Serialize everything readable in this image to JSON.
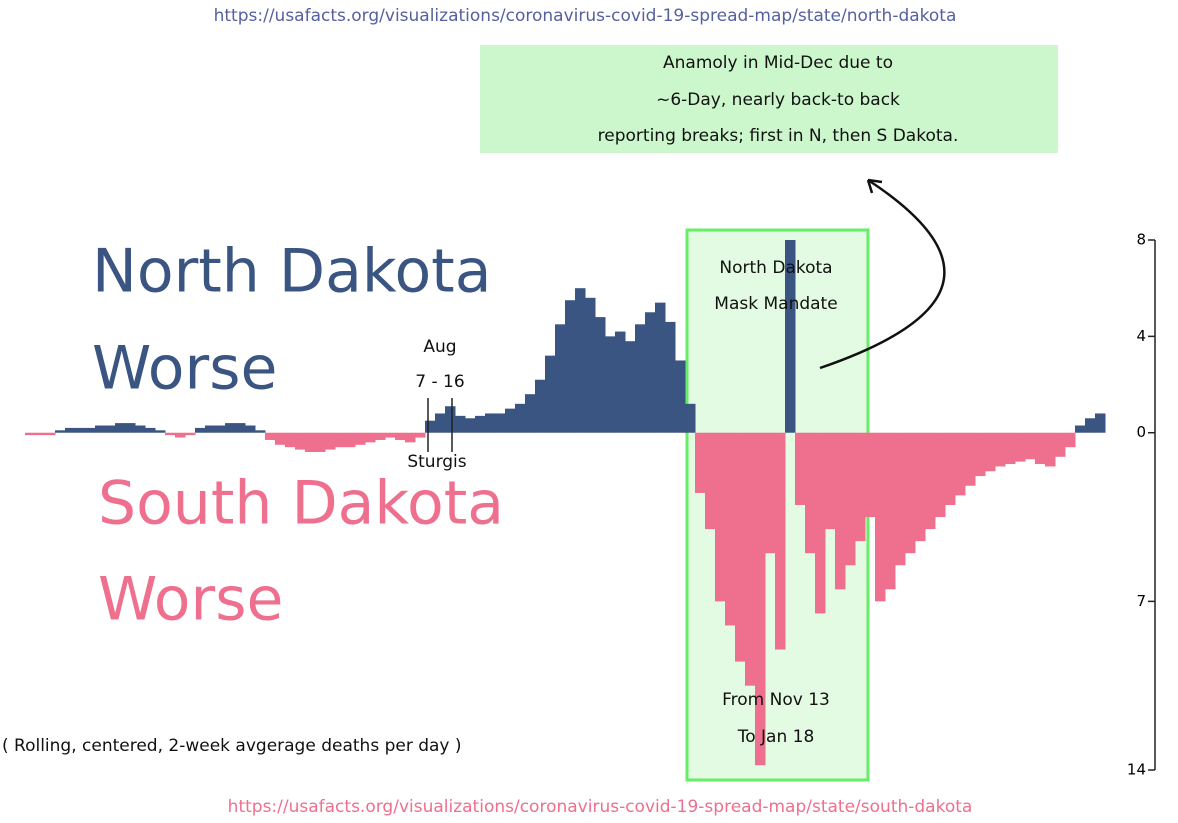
{
  "chart_data": {
    "type": "diverging-bar",
    "source_top": "https://usafacts.org/visualizations/coronavirus-covid-19-spread-map/state/north-dakota",
    "source_bottom": "https://usafacts.org/visualizations/coronavirus-covid-19-spread-map/state/south-dakota",
    "note_lines": [
      "Anamoly in Mid-Dec due to",
      "~6-Day, nearly back-to back",
      "reporting breaks; first in N, then S Dakota."
    ],
    "positive_label": [
      "North Dakota",
      "Worse"
    ],
    "negative_label": [
      "South Dakota",
      "Worse"
    ],
    "event_label": [
      "Aug",
      "7 - 16"
    ],
    "event_name": "Sturgis",
    "mandate_label": [
      "North Dakota",
      "Mask Mandate"
    ],
    "period_label": [
      "From Nov 13",
      "To Jan 18"
    ],
    "footnote": "( Rolling, centered, 2-week avgerage deaths per day )",
    "positive_color": "#3b5583",
    "negative_color": "#ee6f8e",
    "ylim": [
      -14,
      8
    ],
    "yticks": [
      8,
      4,
      0,
      {
        "value": -7,
        "label": "7"
      },
      {
        "value": -14,
        "label": "14"
      }
    ],
    "values": [
      -0.1,
      -0.1,
      -0.1,
      0.1,
      0.2,
      0.2,
      0.2,
      0.3,
      0.3,
      0.4,
      0.4,
      0.3,
      0.2,
      0.1,
      -0.1,
      -0.2,
      -0.1,
      0.2,
      0.3,
      0.3,
      0.4,
      0.4,
      0.3,
      0.1,
      -0.3,
      -0.5,
      -0.6,
      -0.7,
      -0.8,
      -0.8,
      -0.7,
      -0.6,
      -0.6,
      -0.5,
      -0.4,
      -0.3,
      -0.2,
      -0.3,
      -0.4,
      -0.2,
      0.5,
      0.8,
      1.1,
      0.7,
      0.6,
      0.7,
      0.8,
      0.8,
      1.0,
      1.2,
      1.6,
      2.2,
      3.2,
      4.5,
      5.5,
      6.0,
      5.6,
      4.8,
      4.0,
      4.2,
      3.8,
      4.5,
      5.0,
      5.4,
      4.6,
      3.0,
      1.2,
      -2.5,
      -4.0,
      -7.0,
      -8.0,
      -9.5,
      -10.5,
      -13.8,
      -5.0,
      -9.0,
      8.0,
      -3.0,
      -5.0,
      -7.5,
      -4.0,
      -6.5,
      -5.5,
      -4.5,
      -3.5,
      -7.0,
      -6.5,
      -5.5,
      -5.0,
      -4.5,
      -4.0,
      -3.5,
      -3.0,
      -2.6,
      -2.2,
      -1.8,
      -1.6,
      -1.4,
      -1.3,
      -1.2,
      -1.1,
      -1.3,
      -1.4,
      -1.0,
      -0.6,
      0.3,
      0.6,
      0.8
    ]
  }
}
